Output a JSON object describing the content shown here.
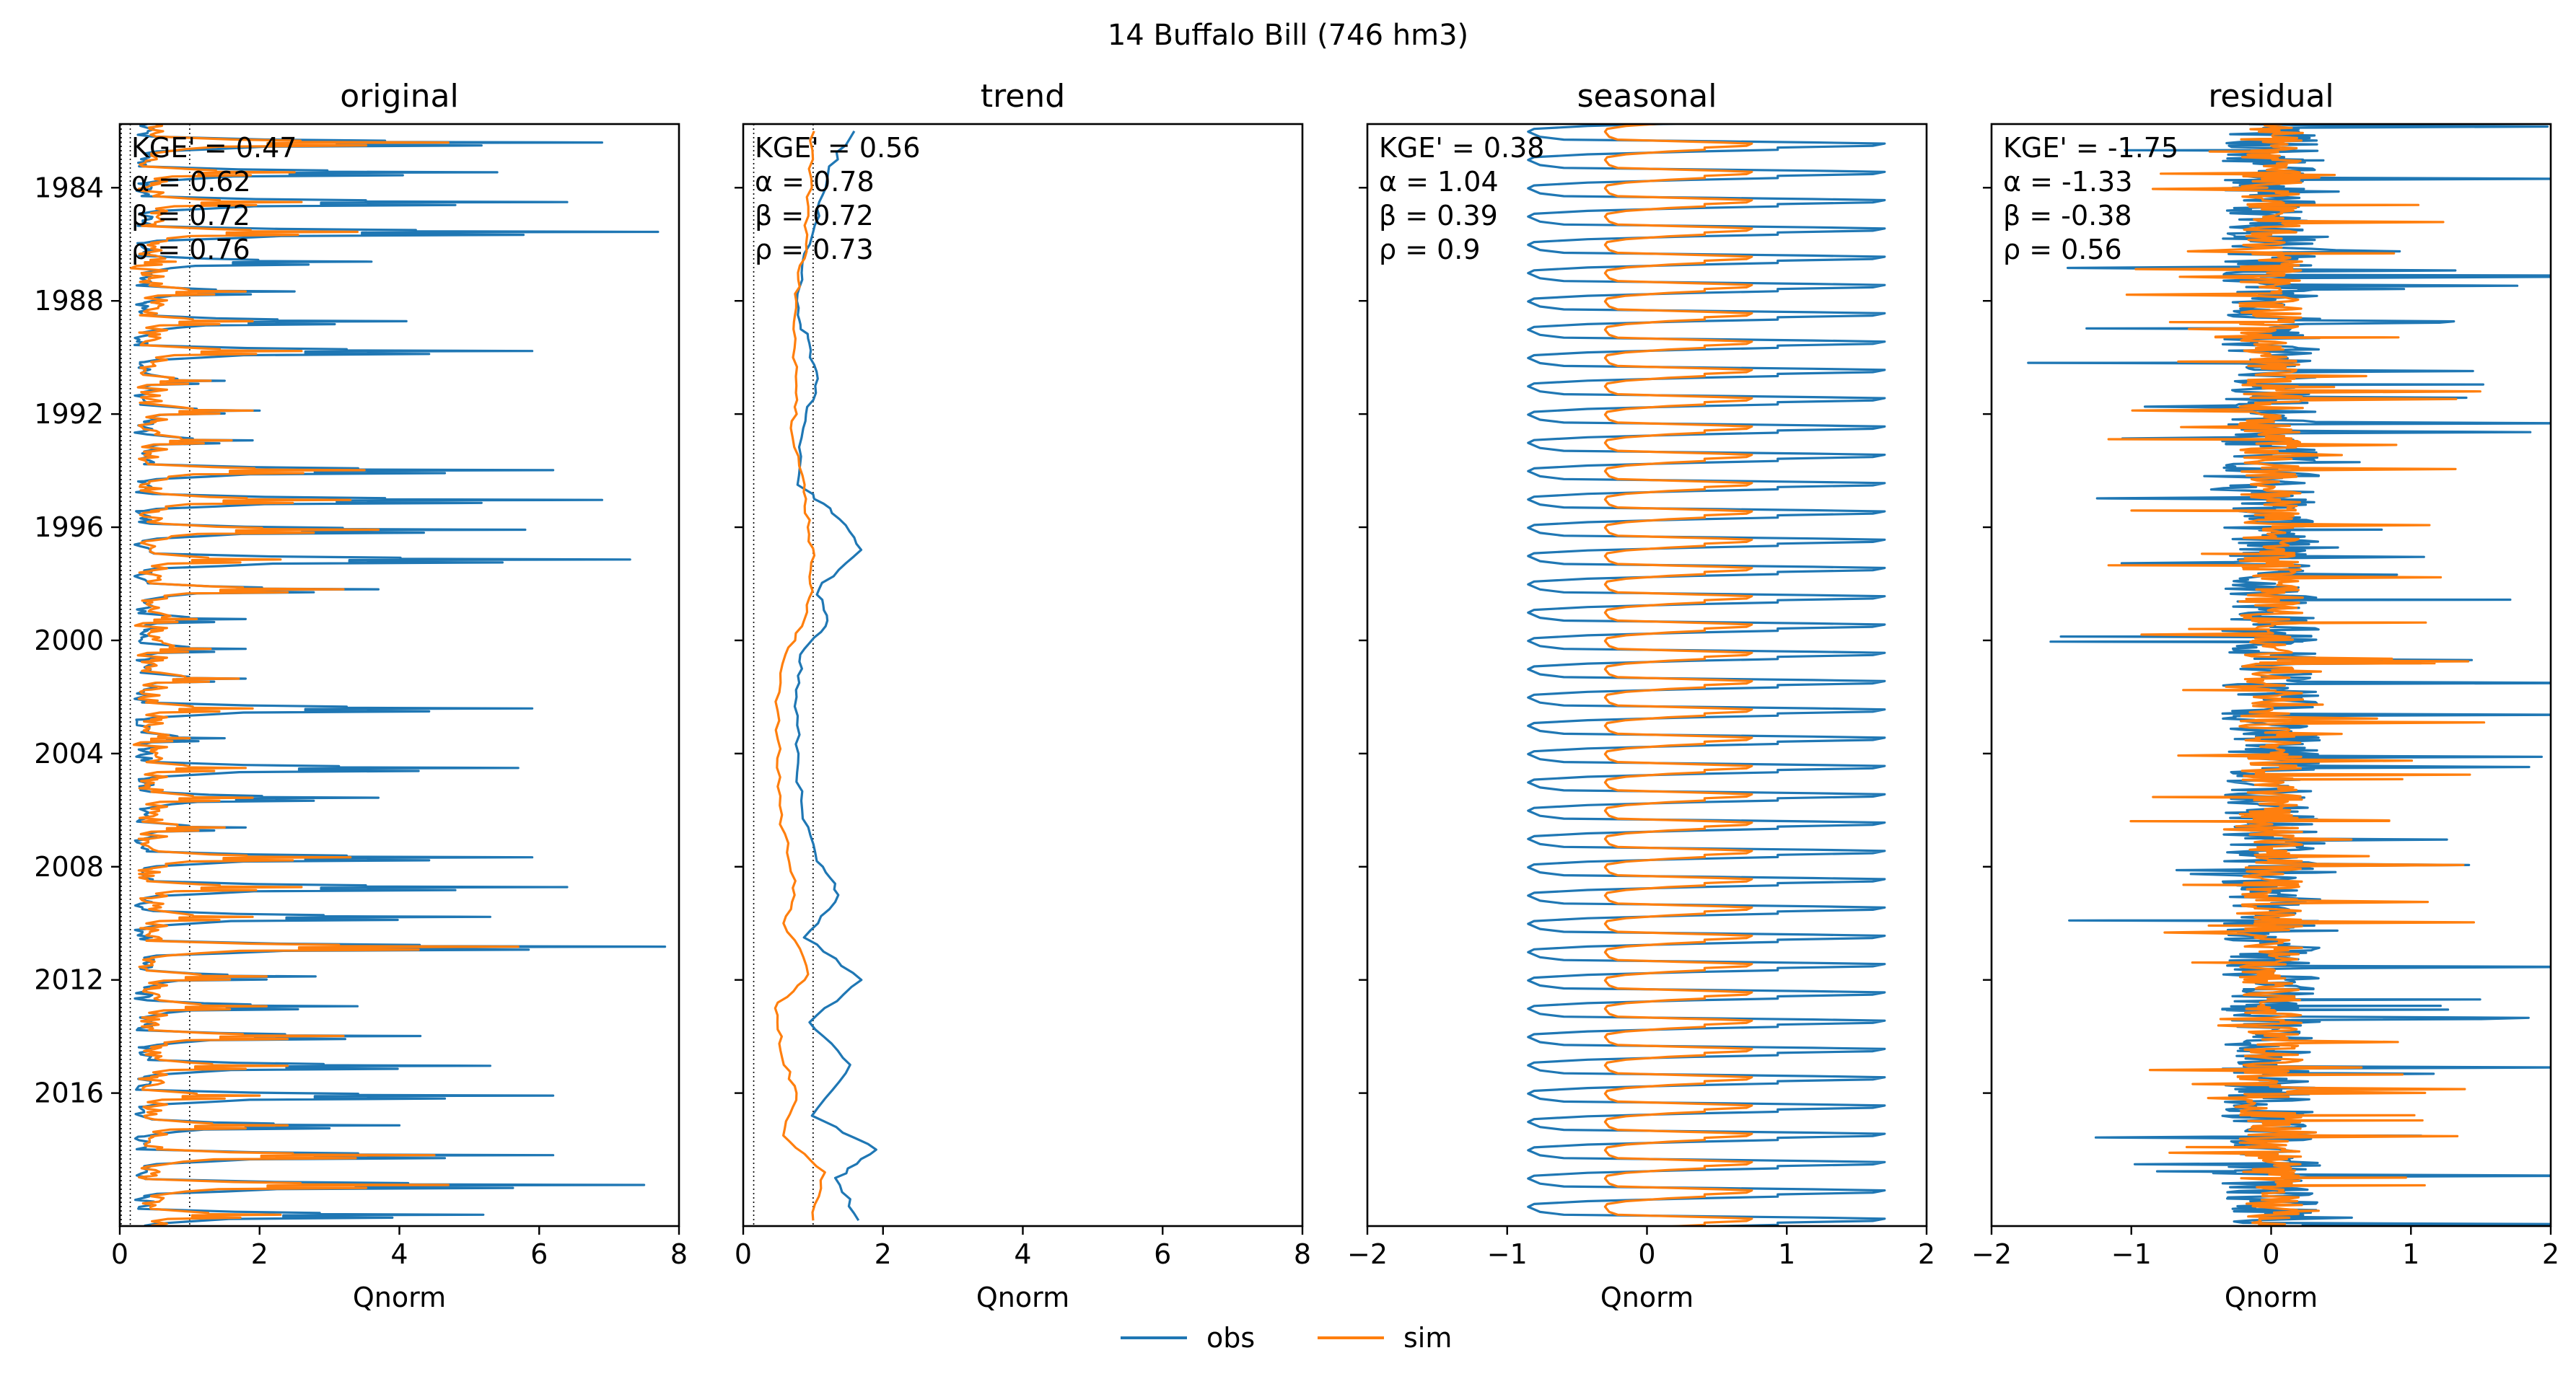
{
  "figure": {
    "suptitle": "14  Buffalo Bill (746 hm3)",
    "xlabel": "Qnorm",
    "legend": {
      "placement": "bottom-center",
      "entries": [
        "obs",
        "sim"
      ]
    },
    "colors": {
      "obs": "#1f77b4",
      "sim": "#ff7f0e",
      "axis": "#000000",
      "ref_line": "#000000"
    }
  },
  "chart_data": [
    {
      "type": "line",
      "title": "original",
      "xlabel": "Qnorm",
      "xlim": [
        0,
        8
      ],
      "xticks": [
        "0",
        "2",
        "4",
        "6",
        "8"
      ],
      "y": {
        "type": "time",
        "range": [
          "1981-10",
          "2020-09"
        ],
        "ticks": [
          "1984",
          "1988",
          "1992",
          "1996",
          "2000",
          "2004",
          "2008",
          "2012",
          "2016"
        ]
      },
      "orientation": "vertical-time",
      "reference_lines_x": [
        0.15,
        1.0
      ],
      "stats": [
        "KGE' = 0.47",
        "α = 0.62",
        "β = 0.72",
        "ρ = 0.76"
      ],
      "series": [
        {
          "name": "obs",
          "peaks": [
            6.9,
            5.4,
            6.4,
            7.7,
            3.6,
            2.5,
            4.1,
            5.9,
            1.5,
            2.0,
            1.9,
            6.2,
            6.9,
            5.8,
            7.3,
            3.7,
            1.8,
            1.8,
            1.8,
            5.9,
            1.5,
            5.7,
            3.7,
            1.8,
            5.9,
            6.4,
            5.3,
            7.8,
            2.8,
            3.4,
            4.3,
            5.3,
            6.2,
            4.0,
            6.2,
            7.5,
            5.2
          ],
          "base": 0.35
        },
        {
          "name": "sim",
          "peaks": [
            4.7,
            2.5,
            2.6,
            3.4,
            0.8,
            1.8,
            1.9,
            2.6,
            1.3,
            1.9,
            1.6,
            3.5,
            3.3,
            3.7,
            2.3,
            3.2,
            1.1,
            1.3,
            1.7,
            1.9,
            1.0,
            1.8,
            1.9,
            1.5,
            3.3,
            2.6,
            1.9,
            5.7,
            2.1,
            2.1,
            3.2,
            2.4,
            2.0,
            2.4,
            4.5,
            4.7,
            2.3
          ],
          "base": 0.45
        }
      ]
    },
    {
      "type": "line",
      "title": "trend",
      "xlabel": "Qnorm",
      "xlim": [
        0,
        8
      ],
      "xticks": [
        "0",
        "2",
        "4",
        "6",
        "8"
      ],
      "y": {
        "type": "time",
        "range": [
          "1981-10",
          "2020-09"
        ],
        "ticks": [
          "1984",
          "1988",
          "1992",
          "1996",
          "2000",
          "2004",
          "2008",
          "2012",
          "2016"
        ]
      },
      "orientation": "vertical-time",
      "reference_lines_x": [
        0.15,
        1.0
      ],
      "stats": [
        "KGE' = 0.56",
        "α = 0.78",
        "β = 0.72",
        "ρ = 0.73"
      ],
      "series": [
        {
          "name": "obs",
          "values": [
            [
              1982.0,
              1.55
            ],
            [
              1983.5,
              1.2
            ],
            [
              1985.0,
              1.05
            ],
            [
              1987.0,
              0.82
            ],
            [
              1988.5,
              0.75
            ],
            [
              1989.5,
              0.95
            ],
            [
              1991.0,
              1.05
            ],
            [
              1992.5,
              0.85
            ],
            [
              1994.5,
              0.8
            ],
            [
              1995.5,
              1.3
            ],
            [
              1996.8,
              1.7
            ],
            [
              1998.2,
              1.05
            ],
            [
              1999.3,
              1.2
            ],
            [
              2000.5,
              0.85
            ],
            [
              2002.0,
              0.75
            ],
            [
              2004.0,
              0.78
            ],
            [
              2006.0,
              0.82
            ],
            [
              2007.8,
              1.05
            ],
            [
              2009.0,
              1.4
            ],
            [
              2010.5,
              0.9
            ],
            [
              2012.0,
              1.7
            ],
            [
              2013.5,
              0.95
            ],
            [
              2015.0,
              1.55
            ],
            [
              2016.8,
              1.0
            ],
            [
              2018.0,
              1.9
            ],
            [
              2019.0,
              1.35
            ],
            [
              2020.5,
              1.65
            ]
          ]
        },
        {
          "name": "sim",
          "values": [
            [
              1982.0,
              1.0
            ],
            [
              1984.0,
              0.95
            ],
            [
              1986.0,
              0.9
            ],
            [
              1987.5,
              0.78
            ],
            [
              1989.0,
              0.7
            ],
            [
              1991.0,
              0.8
            ],
            [
              1992.5,
              0.72
            ],
            [
              1994.5,
              0.85
            ],
            [
              1996.0,
              0.95
            ],
            [
              1997.5,
              1.0
            ],
            [
              1999.0,
              0.92
            ],
            [
              2000.5,
              0.6
            ],
            [
              2002.5,
              0.48
            ],
            [
              2004.5,
              0.5
            ],
            [
              2006.5,
              0.55
            ],
            [
              2008.5,
              0.75
            ],
            [
              2010.0,
              0.6
            ],
            [
              2011.8,
              0.95
            ],
            [
              2013.0,
              0.45
            ],
            [
              2014.5,
              0.55
            ],
            [
              2016.0,
              0.75
            ],
            [
              2017.5,
              0.6
            ],
            [
              2018.8,
              1.15
            ],
            [
              2020.5,
              1.0
            ]
          ]
        }
      ]
    },
    {
      "type": "line",
      "title": "seasonal",
      "xlabel": "Qnorm",
      "xlim": [
        -2,
        2
      ],
      "xticks": [
        "−2",
        "−1",
        "0",
        "1",
        "2"
      ],
      "y": {
        "type": "time",
        "range": [
          "1981-10",
          "2020-09"
        ],
        "ticks": [
          "1984",
          "1988",
          "1992",
          "1996",
          "2000",
          "2004",
          "2008",
          "2012",
          "2016"
        ]
      },
      "orientation": "vertical-time",
      "stats": [
        "KGE' = 0.38",
        "α = 1.04",
        "β = 0.39",
        "ρ = 0.9"
      ],
      "series": [
        {
          "name": "obs",
          "period_years": 1,
          "min": -0.85,
          "max": 1.7
        },
        {
          "name": "sim",
          "period_years": 1,
          "min": -0.3,
          "max": 0.75
        }
      ]
    },
    {
      "type": "line",
      "title": "residual",
      "xlabel": "Qnorm",
      "xlim": [
        -2,
        2
      ],
      "xticks": [
        "−2",
        "−1",
        "0",
        "1",
        "2"
      ],
      "y": {
        "type": "time",
        "range": [
          "1981-10",
          "2020-09"
        ],
        "ticks": [
          "1984",
          "1988",
          "1992",
          "1996",
          "2000",
          "2004",
          "2008",
          "2012",
          "2016"
        ]
      },
      "orientation": "vertical-time",
      "stats": [
        "KGE' = -1.75",
        "α = -1.33",
        "β = -0.38",
        "ρ = 0.56"
      ],
      "series": [
        {
          "name": "obs",
          "amplitude": 2.0
        },
        {
          "name": "sim",
          "amplitude": 1.3
        }
      ]
    }
  ]
}
